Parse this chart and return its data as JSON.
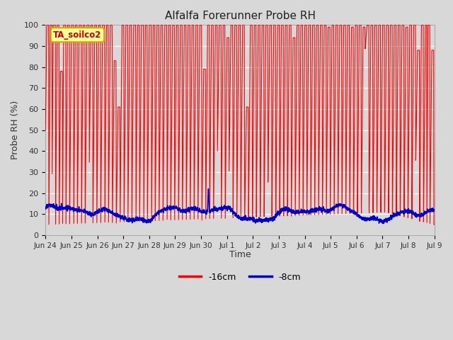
{
  "title": "Alfalfa Forerunner Probe RH",
  "ylabel": "Probe RH (%)",
  "xlabel": "Time",
  "ylim": [
    0,
    100
  ],
  "xlim": [
    0,
    15
  ],
  "facecolor": "#d8d8d8",
  "red_color": "#ff0000",
  "blue_color": "#0000cc",
  "annotation_text": "TA_soilco2",
  "annotation_bg": "#ffff99",
  "annotation_border": "#ccaa00",
  "legend_labels": [
    "-16cm",
    "-8cm"
  ],
  "xtick_labels": [
    "Jun 24",
    "Jun 25",
    "Jun 26",
    "Jun 27",
    "Jun 28",
    "Jun 29",
    "Jun 30",
    "Jul 1",
    "Jul 2",
    "Jul 3",
    "Jul 4",
    "Jul 5",
    "Jul 6",
    "Jul 7",
    "Jul 8",
    "Jul 9"
  ],
  "ytick_vals": [
    0,
    10,
    20,
    30,
    40,
    50,
    60,
    70,
    80,
    90,
    100
  ],
  "red_segments": [
    [
      0.0,
      50
    ],
    [
      0.05,
      100
    ],
    [
      0.12,
      100
    ],
    [
      0.13,
      5
    ],
    [
      0.18,
      100
    ],
    [
      0.25,
      100
    ],
    [
      0.26,
      29
    ],
    [
      0.3,
      100
    ],
    [
      0.38,
      100
    ],
    [
      0.39,
      5
    ],
    [
      0.45,
      100
    ],
    [
      0.52,
      100
    ],
    [
      0.53,
      5
    ],
    [
      0.58,
      78
    ],
    [
      0.65,
      78
    ],
    [
      0.66,
      5
    ],
    [
      0.7,
      100
    ],
    [
      0.78,
      100
    ],
    [
      0.79,
      5
    ],
    [
      0.85,
      100
    ],
    [
      0.92,
      100
    ],
    [
      0.93,
      5
    ],
    [
      1.0,
      100
    ],
    [
      1.08,
      100
    ],
    [
      1.09,
      5
    ],
    [
      1.15,
      100
    ],
    [
      1.22,
      100
    ],
    [
      1.23,
      5
    ],
    [
      1.3,
      100
    ],
    [
      1.38,
      100
    ],
    [
      1.39,
      5
    ],
    [
      1.45,
      100
    ],
    [
      1.52,
      100
    ],
    [
      1.53,
      5
    ],
    [
      1.6,
      100
    ],
    [
      1.68,
      100
    ],
    [
      1.69,
      34
    ],
    [
      1.75,
      100
    ],
    [
      1.82,
      100
    ],
    [
      1.83,
      5
    ],
    [
      1.9,
      100
    ],
    [
      1.97,
      100
    ],
    [
      1.98,
      5
    ],
    [
      2.05,
      100
    ],
    [
      2.12,
      100
    ],
    [
      2.13,
      5
    ],
    [
      2.2,
      100
    ],
    [
      2.28,
      100
    ],
    [
      2.29,
      5
    ],
    [
      2.35,
      100
    ],
    [
      2.42,
      100
    ],
    [
      2.43,
      5
    ],
    [
      2.5,
      100
    ],
    [
      2.57,
      100
    ],
    [
      2.58,
      5
    ],
    [
      2.65,
      83
    ],
    [
      2.72,
      83
    ],
    [
      2.73,
      5
    ],
    [
      2.8,
      61
    ],
    [
      2.87,
      61
    ],
    [
      2.88,
      5
    ],
    [
      2.95,
      100
    ],
    [
      3.02,
      100
    ],
    [
      3.03,
      5
    ],
    [
      3.1,
      100
    ],
    [
      3.17,
      100
    ],
    [
      3.18,
      5
    ],
    [
      3.25,
      100
    ],
    [
      3.32,
      100
    ],
    [
      3.33,
      5
    ],
    [
      3.4,
      100
    ],
    [
      3.48,
      100
    ],
    [
      3.49,
      5
    ],
    [
      3.55,
      100
    ],
    [
      3.62,
      100
    ],
    [
      3.63,
      5
    ],
    [
      3.7,
      100
    ],
    [
      3.78,
      100
    ],
    [
      3.79,
      5
    ],
    [
      3.85,
      100
    ],
    [
      3.92,
      100
    ],
    [
      3.93,
      5
    ],
    [
      4.0,
      100
    ],
    [
      4.08,
      100
    ],
    [
      4.09,
      5
    ],
    [
      4.15,
      100
    ],
    [
      4.22,
      100
    ],
    [
      4.23,
      5
    ],
    [
      4.3,
      100
    ],
    [
      4.37,
      100
    ],
    [
      4.38,
      5
    ],
    [
      4.45,
      100
    ],
    [
      4.52,
      100
    ],
    [
      4.53,
      5
    ],
    [
      4.6,
      100
    ],
    [
      4.68,
      100
    ],
    [
      4.69,
      5
    ],
    [
      4.75,
      100
    ],
    [
      4.82,
      100
    ],
    [
      4.83,
      5
    ],
    [
      4.9,
      100
    ],
    [
      4.97,
      100
    ],
    [
      4.98,
      5
    ],
    [
      5.05,
      100
    ],
    [
      5.12,
      100
    ],
    [
      5.13,
      5
    ],
    [
      5.2,
      100
    ],
    [
      5.27,
      100
    ],
    [
      5.28,
      5
    ],
    [
      5.35,
      100
    ],
    [
      5.42,
      100
    ],
    [
      5.43,
      5
    ],
    [
      5.5,
      100
    ],
    [
      5.57,
      100
    ],
    [
      5.58,
      5
    ],
    [
      5.65,
      100
    ],
    [
      5.72,
      100
    ],
    [
      5.73,
      5
    ],
    [
      5.8,
      100
    ],
    [
      5.87,
      100
    ],
    [
      5.88,
      5
    ],
    [
      5.95,
      100
    ],
    [
      6.02,
      100
    ],
    [
      6.03,
      5
    ],
    [
      6.1,
      79
    ],
    [
      6.17,
      79
    ],
    [
      6.18,
      5
    ],
    [
      6.25,
      100
    ],
    [
      6.32,
      100
    ],
    [
      6.33,
      5
    ],
    [
      6.4,
      100
    ],
    [
      6.47,
      100
    ],
    [
      6.48,
      5
    ],
    [
      6.55,
      100
    ],
    [
      6.62,
      100
    ],
    [
      6.63,
      38
    ],
    [
      6.7,
      100
    ],
    [
      6.77,
      100
    ],
    [
      6.78,
      5
    ],
    [
      6.85,
      100
    ],
    [
      6.92,
      100
    ],
    [
      6.93,
      5
    ],
    [
      7.0,
      94
    ],
    [
      7.07,
      94
    ],
    [
      7.08,
      28
    ],
    [
      7.15,
      100
    ],
    [
      7.22,
      100
    ],
    [
      7.23,
      5
    ],
    [
      7.3,
      100
    ],
    [
      7.37,
      100
    ],
    [
      7.38,
      5
    ],
    [
      7.45,
      100
    ],
    [
      7.52,
      100
    ],
    [
      7.53,
      5
    ],
    [
      7.6,
      100
    ],
    [
      7.67,
      100
    ],
    [
      7.68,
      5
    ],
    [
      7.75,
      61
    ],
    [
      7.82,
      61
    ],
    [
      7.83,
      5
    ],
    [
      7.9,
      100
    ],
    [
      7.97,
      100
    ],
    [
      7.98,
      5
    ],
    [
      8.05,
      100
    ],
    [
      8.12,
      100
    ],
    [
      8.13,
      5
    ],
    [
      8.2,
      100
    ],
    [
      8.27,
      100
    ],
    [
      8.28,
      5
    ],
    [
      8.35,
      100
    ],
    [
      8.42,
      100
    ],
    [
      8.43,
      5
    ],
    [
      8.5,
      100
    ],
    [
      8.57,
      100
    ],
    [
      8.58,
      22
    ],
    [
      8.65,
      100
    ],
    [
      8.72,
      100
    ],
    [
      8.73,
      5
    ],
    [
      8.8,
      100
    ],
    [
      8.87,
      100
    ],
    [
      8.88,
      5
    ],
    [
      8.95,
      100
    ],
    [
      9.02,
      100
    ],
    [
      9.03,
      5
    ],
    [
      9.1,
      100
    ],
    [
      9.17,
      100
    ],
    [
      9.18,
      5
    ],
    [
      9.25,
      100
    ],
    [
      9.32,
      100
    ],
    [
      9.33,
      5
    ],
    [
      9.4,
      100
    ],
    [
      9.47,
      100
    ],
    [
      9.48,
      5
    ],
    [
      9.55,
      94
    ],
    [
      9.62,
      94
    ],
    [
      9.63,
      5
    ],
    [
      9.7,
      100
    ],
    [
      9.77,
      100
    ],
    [
      9.78,
      5
    ],
    [
      9.85,
      100
    ],
    [
      9.92,
      100
    ],
    [
      9.93,
      5
    ],
    [
      10.0,
      100
    ],
    [
      10.07,
      100
    ],
    [
      10.08,
      5
    ],
    [
      10.15,
      100
    ],
    [
      10.22,
      100
    ],
    [
      10.23,
      5
    ],
    [
      10.3,
      100
    ],
    [
      10.37,
      100
    ],
    [
      10.38,
      5
    ],
    [
      10.45,
      100
    ],
    [
      10.52,
      100
    ],
    [
      10.53,
      5
    ],
    [
      10.6,
      100
    ],
    [
      10.67,
      100
    ],
    [
      10.68,
      5
    ],
    [
      10.75,
      100
    ],
    [
      10.82,
      100
    ],
    [
      10.83,
      5
    ],
    [
      10.9,
      99
    ],
    [
      10.97,
      99
    ],
    [
      10.98,
      5
    ],
    [
      11.05,
      100
    ],
    [
      11.12,
      100
    ],
    [
      11.13,
      5
    ],
    [
      11.2,
      100
    ],
    [
      11.27,
      100
    ],
    [
      11.28,
      5
    ],
    [
      11.35,
      100
    ],
    [
      11.42,
      100
    ],
    [
      11.43,
      5
    ],
    [
      11.5,
      100
    ],
    [
      11.57,
      100
    ],
    [
      11.58,
      5
    ],
    [
      11.65,
      100
    ],
    [
      11.72,
      100
    ],
    [
      11.73,
      5
    ],
    [
      11.8,
      99
    ],
    [
      11.87,
      99
    ],
    [
      11.88,
      5
    ],
    [
      11.95,
      100
    ],
    [
      12.02,
      100
    ],
    [
      12.03,
      5
    ],
    [
      12.1,
      100
    ],
    [
      12.17,
      100
    ],
    [
      12.18,
      5
    ],
    [
      12.25,
      99
    ],
    [
      12.32,
      99
    ],
    [
      12.33,
      88
    ],
    [
      12.4,
      100
    ],
    [
      12.47,
      100
    ],
    [
      12.48,
      5
    ],
    [
      12.55,
      100
    ],
    [
      12.62,
      100
    ],
    [
      12.63,
      5
    ],
    [
      12.7,
      100
    ],
    [
      12.77,
      100
    ],
    [
      12.78,
      5
    ],
    [
      12.85,
      100
    ],
    [
      12.92,
      100
    ],
    [
      12.93,
      5
    ],
    [
      13.0,
      100
    ],
    [
      13.07,
      100
    ],
    [
      13.08,
      5
    ],
    [
      13.15,
      100
    ],
    [
      13.22,
      100
    ],
    [
      13.23,
      5
    ],
    [
      13.3,
      100
    ],
    [
      13.37,
      100
    ],
    [
      13.38,
      5
    ],
    [
      13.45,
      100
    ],
    [
      13.52,
      100
    ],
    [
      13.53,
      5
    ],
    [
      13.6,
      100
    ],
    [
      13.67,
      100
    ],
    [
      13.68,
      5
    ],
    [
      13.75,
      100
    ],
    [
      13.82,
      100
    ],
    [
      13.83,
      5
    ],
    [
      13.9,
      99
    ],
    [
      13.97,
      99
    ],
    [
      13.98,
      5
    ],
    [
      14.05,
      100
    ],
    [
      14.12,
      100
    ],
    [
      14.13,
      5
    ],
    [
      14.2,
      100
    ],
    [
      14.27,
      100
    ],
    [
      14.28,
      34
    ],
    [
      14.35,
      88
    ],
    [
      14.42,
      88
    ],
    [
      14.43,
      5
    ],
    [
      14.5,
      100
    ],
    [
      14.57,
      100
    ],
    [
      14.58,
      5
    ],
    [
      14.65,
      100
    ],
    [
      14.7,
      100
    ],
    [
      14.71,
      5
    ],
    [
      14.75,
      100
    ],
    [
      14.82,
      100
    ],
    [
      14.83,
      5
    ],
    [
      14.9,
      88
    ],
    [
      14.97,
      88
    ],
    [
      14.98,
      5
    ],
    [
      15.0,
      5
    ]
  ]
}
